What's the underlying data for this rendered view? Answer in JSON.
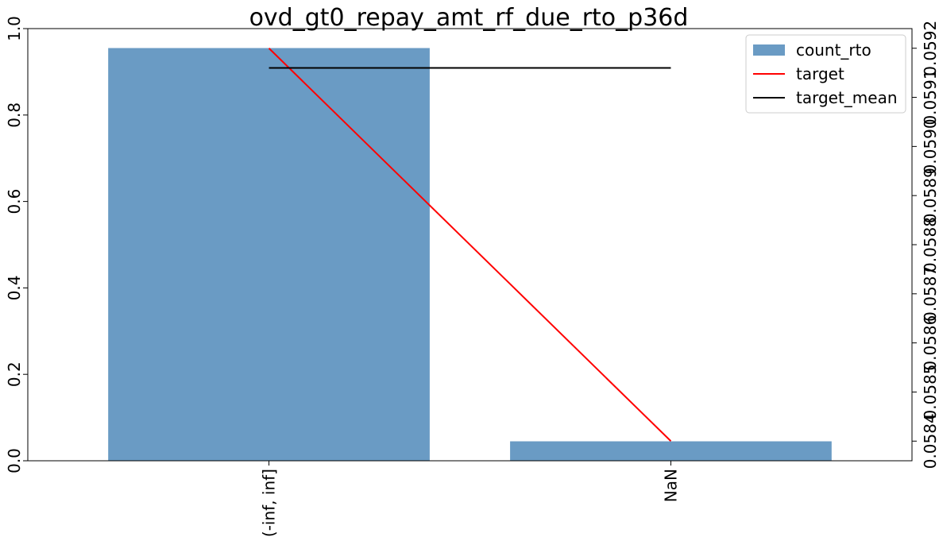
{
  "chart_data": {
    "type": "bar",
    "title": "ovd_gt0_repay_amt_rf_due_rto_p36d",
    "categories": [
      "(-inf, inf]",
      "NaN"
    ],
    "xlabel": "",
    "ylabel": "",
    "ylabel_right": "",
    "ylim": [
      0,
      1.0
    ],
    "ylim_right": [
      0.05836,
      0.05924
    ],
    "yticks": [
      0.0,
      0.2,
      0.4,
      0.6,
      0.8,
      1.0
    ],
    "ytick_labels": [
      "0.0",
      "0.2",
      "0.4",
      "0.6",
      "0.8",
      "1.0"
    ],
    "yticks_right": [
      0.0584,
      0.0585,
      0.0586,
      0.0587,
      0.0588,
      0.0589,
      0.059,
      0.0591,
      0.0592
    ],
    "ytick_labels_right": [
      "0.0584",
      "0.0585",
      "0.0586",
      "0.0587",
      "0.0588",
      "0.0589",
      "0.0590",
      "0.0591",
      "0.0592"
    ],
    "grid": false,
    "legend_position": "top-right",
    "series": [
      {
        "name": "count_rto",
        "kind": "bar",
        "axis": "left",
        "color": "#6a9bc4",
        "values": [
          0.955,
          0.045
        ]
      },
      {
        "name": "target",
        "kind": "line",
        "axis": "right",
        "color": "#ff0000",
        "values": [
          0.0592,
          0.0584
        ]
      },
      {
        "name": "target_mean",
        "kind": "line",
        "axis": "right",
        "color": "#000000",
        "values": [
          0.05916,
          0.05916
        ]
      }
    ]
  }
}
